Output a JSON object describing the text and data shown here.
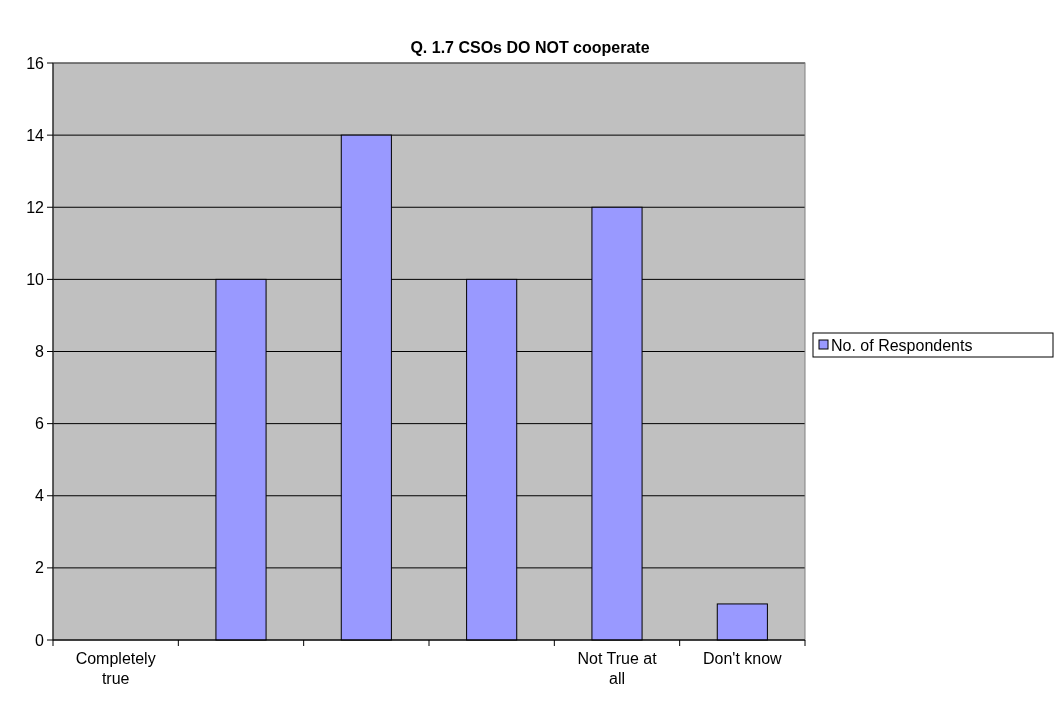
{
  "chart_data": {
    "type": "bar",
    "title": "Q. 1.7 CSOs DO NOT cooperate",
    "categories": [
      "Completely true",
      null,
      null,
      null,
      "Not True at all",
      "Don't know"
    ],
    "series": [
      {
        "name": "No. of Respondents",
        "color": "#9999ff",
        "values": [
          0,
          10,
          14,
          10,
          12,
          1
        ]
      }
    ],
    "ylim": [
      0,
      16
    ],
    "yticks": [
      0,
      2,
      4,
      6,
      8,
      10,
      12,
      14,
      16
    ],
    "grid": "y",
    "legend": "right"
  }
}
